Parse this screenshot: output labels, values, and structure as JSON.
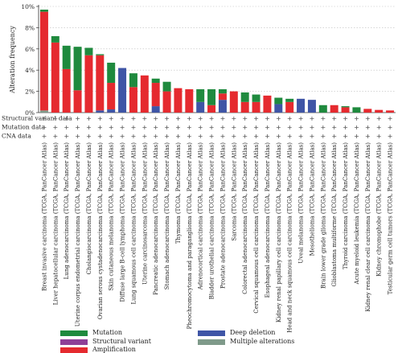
{
  "chart_data": {
    "type": "bar",
    "stacked": true,
    "ylabel": "Alteration frequency",
    "ylim": [
      0,
      10
    ],
    "yticks": [
      "0%",
      "2%",
      "4%",
      "6%",
      "8%",
      "10%"
    ],
    "grid": "dotted horizontal",
    "categories": [
      "Breast invasive carcinoma (TCGA, PanCancer Atlas)",
      "Liver hepatocellular carcinoma (TCGA, PanCancer Atlas)",
      "Lung adenocarcinoma (TCGA, PanCancer Atlas)",
      "Uterine corpus endometrial carcinoma (TCGA, PanCancer Atlas)",
      "Cholangiocarcinoma (TCGA, PanCancer Atlas)",
      "Ovarian serous cystadenocarcinoma (TCGA, PanCancer Atlas)",
      "Skin cutaneous melanoma (TCGA, PanCancer Atlas)",
      "Diffuse large B-cell lymphoma (TCGA, PanCancer Atlas)",
      "Lung squamous cell carcinoma (TCGA, PanCancer Atlas)",
      "Uterine carcinosarcoma (TCGA, PanCancer Atlas)",
      "Pancreatic adenocarcinoma (TCGA, PanCancer Atlas)",
      "Stomach adenocarcinoma (TCGA, PanCancer Atlas)",
      "Thymoma (TCGA, PanCancer Atlas)",
      "Pheochromocytoma and paraganglioma (TCGA, PanCancer Atlas)",
      "Adrenocortical carcinoma (TCGA, PanCancer Atlas)",
      "Bladder urothelial carcinoma (TCGA, PanCancer Atlas)",
      "Prostate adenocarcinoma (TCGA, PanCancer Atlas)",
      "Sarcoma (TCGA, PanCancer Atlas)",
      "Colorectal adenocarcinoma (TCGA, PanCancer Atlas)",
      "Cervical squamous cell carcinoma (TCGA, PanCancer Atlas)",
      "Esophageal adenocarcinoma (TCGA, PanCancer Atlas)",
      "Kidney renal papillary cell carcinoma (TCGA, PanCancer Atlas)",
      "Head and neck squamous cell carcinoma (TCGA, PanCancer Atlas)",
      "Uveal melanoma (TCGA, PanCancer Atlas)",
      "Mesothelioma (TCGA, PanCancer Atlas)",
      "Brain lower grade glioma (TCGA, PanCancer Atlas)",
      "Glioblastoma multiforme (TCGA, PanCancer Atlas)",
      "Thyroid carcinoma (TCGA, PanCancer Atlas)",
      "Acute myeloid leukemia (TCGA, PanCancer Atlas)",
      "Kidney renal clear cell carcinoma (TCGA, PanCancer Atlas)",
      "Kidney chromophobe (TCGA, PanCancer Atlas)",
      "Testicular germ cell tumors (TCGA, PanCancer Atlas)"
    ],
    "series": [
      {
        "name": "Multiple alterations",
        "color": "#7f9a8a",
        "values": [
          0.2,
          0,
          0,
          0,
          0,
          0,
          0,
          0,
          0,
          0,
          0,
          0,
          0,
          0,
          0,
          0,
          0,
          0,
          0,
          0,
          0,
          0,
          0,
          0,
          0,
          0,
          0,
          0,
          0,
          0,
          0,
          0
        ]
      },
      {
        "name": "Deep deletion",
        "color": "#3f55a6",
        "values": [
          0,
          0,
          0,
          0,
          0,
          0.2,
          0.3,
          4.2,
          0,
          0,
          0.6,
          0,
          0,
          0,
          1.0,
          0,
          1.2,
          0,
          0,
          0,
          0,
          0.8,
          0,
          1.3,
          1.2,
          0,
          0,
          0,
          0,
          0,
          0,
          0
        ]
      },
      {
        "name": "Structural variant",
        "color": "#8e3f97",
        "values": [
          0,
          0,
          0,
          0,
          0,
          0,
          0,
          0,
          0,
          0,
          0,
          0,
          0,
          0,
          0,
          0,
          0,
          0,
          0,
          0,
          0,
          0,
          0,
          0,
          0,
          0,
          0,
          0,
          0,
          0,
          0,
          0
        ]
      },
      {
        "name": "Amplification",
        "color": "#e52a2f",
        "values": [
          9.3,
          6.6,
          4.1,
          2.1,
          5.4,
          5.2,
          2.5,
          0,
          2.4,
          3.5,
          2.2,
          2.0,
          2.3,
          2.2,
          0,
          0.7,
          0.6,
          2.0,
          1.0,
          1.0,
          1.6,
          0,
          1.0,
          0,
          0,
          0,
          0.7,
          0.5,
          0,
          0.35,
          0.25,
          0.2
        ]
      },
      {
        "name": "Mutation",
        "color": "#1f8a3e",
        "values": [
          0.2,
          0.6,
          2.2,
          4.1,
          0.7,
          0.1,
          1.9,
          0,
          1.3,
          0,
          0.4,
          0.9,
          0,
          0,
          1.2,
          1.5,
          0.4,
          0,
          0.9,
          0.7,
          0,
          0.6,
          0.3,
          0,
          0,
          0.7,
          0,
          0.1,
          0.5,
          0,
          0,
          0
        ]
      }
    ],
    "tracks": [
      {
        "label": "Structural variant data",
        "marker": "+"
      },
      {
        "label": "Mutation data",
        "marker": "+"
      },
      {
        "label": "CNA data",
        "marker": "+"
      }
    ],
    "legend": {
      "placement": "bottom",
      "items": [
        "Mutation",
        "Structural variant",
        "Amplification",
        "Deep deletion",
        "Multiple alterations"
      ]
    }
  }
}
